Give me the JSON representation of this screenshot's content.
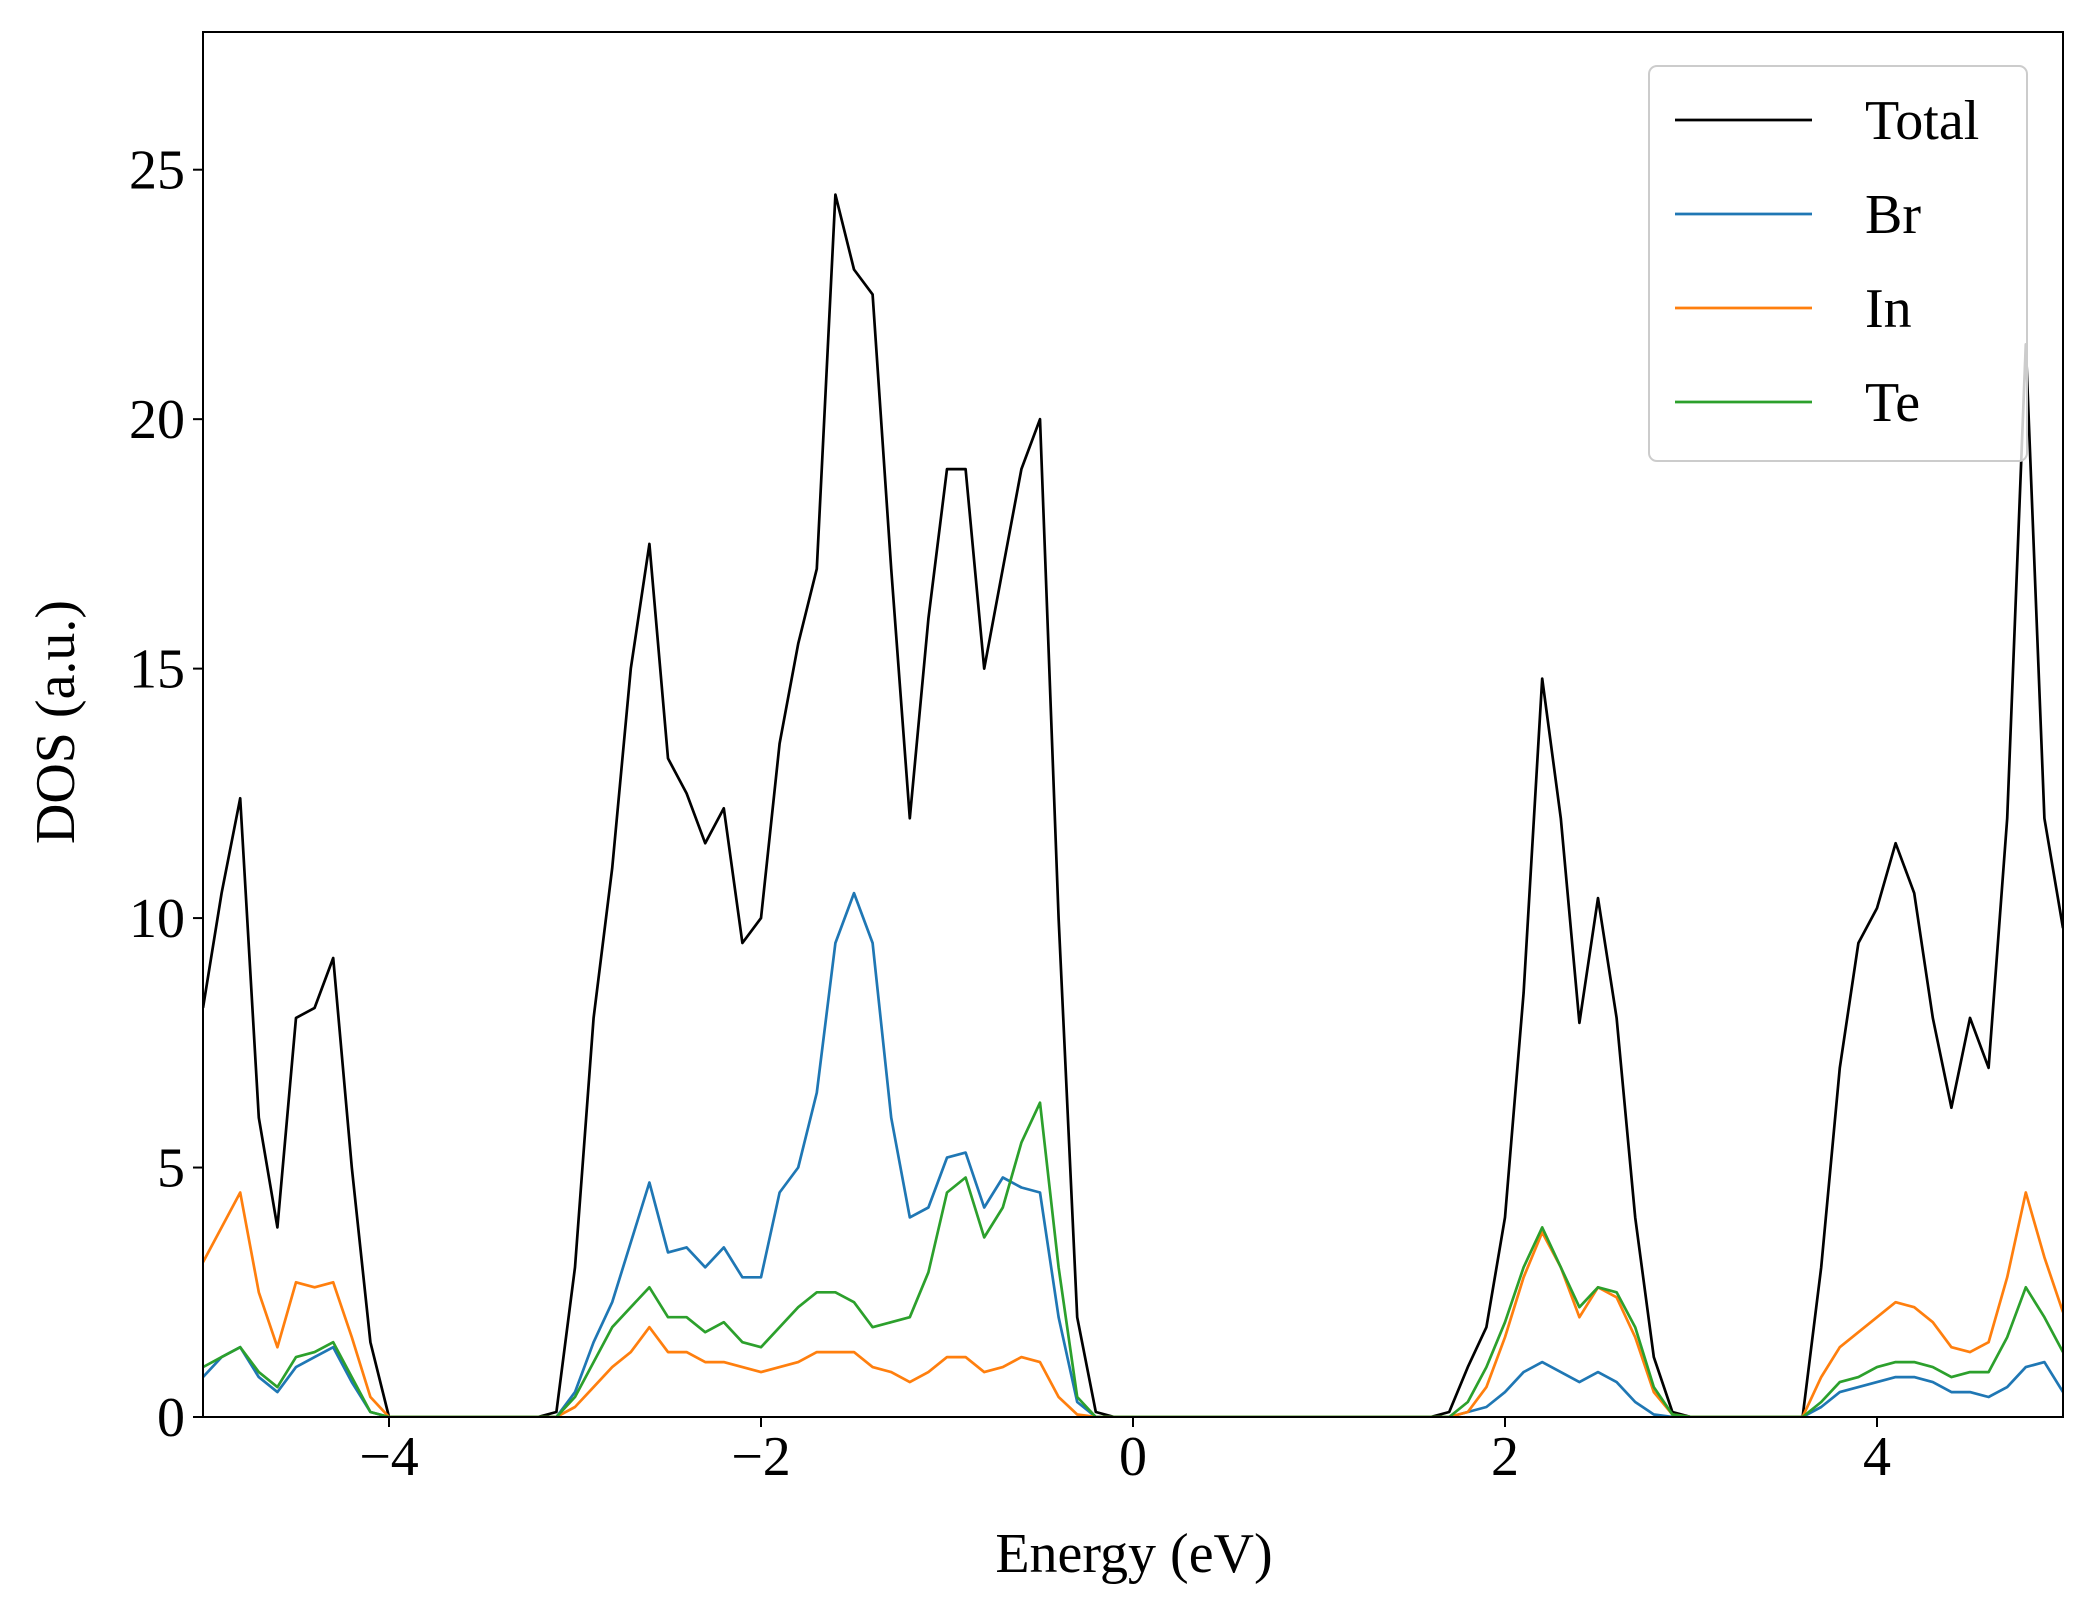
{
  "chart_data": {
    "type": "line",
    "xlabel": "Energy (eV)",
    "ylabel": "DOS (a.u.)",
    "x": [
      -5.0,
      -4.9,
      -4.8,
      -4.7,
      -4.6,
      -4.5,
      -4.4,
      -4.3,
      -4.2,
      -4.1,
      -4.0,
      -3.9,
      -3.8,
      -3.7,
      -3.6,
      -3.5,
      -3.4,
      -3.3,
      -3.2,
      -3.1,
      -3.0,
      -2.9,
      -2.8,
      -2.7,
      -2.6,
      -2.5,
      -2.4,
      -2.3,
      -2.2,
      -2.1,
      -2.0,
      -1.9,
      -1.8,
      -1.7,
      -1.6,
      -1.5,
      -1.4,
      -1.3,
      -1.2,
      -1.1,
      -1.0,
      -0.9,
      -0.8,
      -0.7,
      -0.6,
      -0.5,
      -0.4,
      -0.3,
      -0.2,
      -0.1,
      0.0,
      0.1,
      0.2,
      0.3,
      0.4,
      0.5,
      0.6,
      0.7,
      0.8,
      0.9,
      1.0,
      1.1,
      1.2,
      1.3,
      1.4,
      1.5,
      1.6,
      1.7,
      1.8,
      1.9,
      2.0,
      2.1,
      2.2,
      2.3,
      2.4,
      2.5,
      2.6,
      2.7,
      2.8,
      2.9,
      3.0,
      3.1,
      3.2,
      3.3,
      3.4,
      3.5,
      3.6,
      3.7,
      3.8,
      3.9,
      4.0,
      4.1,
      4.2,
      4.3,
      4.4,
      4.5,
      4.6,
      4.7,
      4.8,
      4.9,
      5.0
    ],
    "series": [
      {
        "name": "Total",
        "color": "#000000",
        "values": [
          8.2,
          10.5,
          12.4,
          6,
          3.8,
          8.0,
          8.2,
          9.2,
          5,
          1.5,
          0,
          0,
          0,
          0,
          0,
          0,
          0,
          0,
          0,
          0.1,
          3,
          8,
          11,
          15,
          17.5,
          13.2,
          12.5,
          11.5,
          12.2,
          9.5,
          10,
          13.5,
          15.5,
          17,
          24.5,
          23,
          22.5,
          17,
          12,
          16,
          19,
          19,
          15,
          17,
          19,
          20,
          10,
          2,
          0.1,
          0,
          0,
          0,
          0,
          0,
          0,
          0,
          0,
          0,
          0,
          0,
          0,
          0,
          0,
          0,
          0,
          0,
          0,
          0.1,
          1.0,
          1.8,
          4,
          8.5,
          14.8,
          12,
          7.9,
          10.4,
          8,
          4,
          1.2,
          0.1,
          0,
          0,
          0,
          0,
          0,
          0,
          0,
          3,
          7,
          9.5,
          10.2,
          11.5,
          10.5,
          8,
          6.2,
          8,
          7,
          12,
          21.5,
          12,
          9.8
        ]
      },
      {
        "name": "Br",
        "color": "#1f77b4",
        "values": [
          0.8,
          1.2,
          1.4,
          0.8,
          0.5,
          1.0,
          1.2,
          1.4,
          0.7,
          0.1,
          0,
          0,
          0,
          0,
          0,
          0,
          0,
          0,
          0,
          0,
          0.5,
          1.5,
          2.3,
          3.5,
          4.7,
          3.3,
          3.4,
          3.0,
          3.4,
          2.8,
          2.8,
          4.5,
          5.0,
          6.5,
          9.5,
          10.5,
          9.5,
          6,
          4,
          4.2,
          5.2,
          5.3,
          4.2,
          4.8,
          4.6,
          4.5,
          2,
          0.3,
          0,
          0,
          0,
          0,
          0,
          0,
          0,
          0,
          0,
          0,
          0,
          0,
          0,
          0,
          0,
          0,
          0,
          0,
          0,
          0,
          0.1,
          0.2,
          0.5,
          0.9,
          1.1,
          0.9,
          0.7,
          0.9,
          0.7,
          0.3,
          0.05,
          0,
          0,
          0,
          0,
          0,
          0,
          0,
          0,
          0.2,
          0.5,
          0.6,
          0.7,
          0.8,
          0.8,
          0.7,
          0.5,
          0.5,
          0.4,
          0.6,
          1.0,
          1.1,
          0.5
        ]
      },
      {
        "name": "In",
        "color": "#ff7f0e",
        "values": [
          3.1,
          3.8,
          4.5,
          2.5,
          1.4,
          2.7,
          2.6,
          2.7,
          1.6,
          0.4,
          0,
          0,
          0,
          0,
          0,
          0,
          0,
          0,
          0,
          0,
          0.2,
          0.6,
          1.0,
          1.3,
          1.8,
          1.3,
          1.3,
          1.1,
          1.1,
          1.0,
          0.9,
          1.0,
          1.1,
          1.3,
          1.3,
          1.3,
          1.0,
          0.9,
          0.7,
          0.9,
          1.2,
          1.2,
          0.9,
          1.0,
          1.2,
          1.1,
          0.4,
          0.05,
          0,
          0,
          0,
          0,
          0,
          0,
          0,
          0,
          0,
          0,
          0,
          0,
          0,
          0,
          0,
          0,
          0,
          0,
          0,
          0,
          0.1,
          0.6,
          1.6,
          2.8,
          3.7,
          3.0,
          2.0,
          2.6,
          2.4,
          1.6,
          0.5,
          0.05,
          0,
          0,
          0,
          0,
          0,
          0,
          0,
          0.8,
          1.4,
          1.7,
          2.0,
          2.3,
          2.2,
          1.9,
          1.4,
          1.3,
          1.5,
          2.8,
          4.5,
          3.2,
          2.1
        ]
      },
      {
        "name": "Te",
        "color": "#2ca02c",
        "values": [
          1.0,
          1.2,
          1.4,
          0.9,
          0.6,
          1.2,
          1.3,
          1.5,
          0.8,
          0.1,
          0,
          0,
          0,
          0,
          0,
          0,
          0,
          0,
          0,
          0,
          0.4,
          1.1,
          1.8,
          2.2,
          2.6,
          2.0,
          2.0,
          1.7,
          1.9,
          1.5,
          1.4,
          1.8,
          2.2,
          2.5,
          2.5,
          2.3,
          1.8,
          1.9,
          2.0,
          2.9,
          4.5,
          4.8,
          3.6,
          4.2,
          5.5,
          6.3,
          3.0,
          0.4,
          0,
          0,
          0,
          0,
          0,
          0,
          0,
          0,
          0,
          0,
          0,
          0,
          0,
          0,
          0,
          0,
          0,
          0,
          0,
          0,
          0.3,
          1.0,
          1.9,
          3.0,
          3.8,
          3.0,
          2.2,
          2.6,
          2.5,
          1.8,
          0.6,
          0.05,
          0,
          0,
          0,
          0,
          0,
          0,
          0,
          0.3,
          0.7,
          0.8,
          1.0,
          1.1,
          1.1,
          1.0,
          0.8,
          0.9,
          0.9,
          1.6,
          2.6,
          2.0,
          1.3
        ]
      }
    ],
    "xlim": [
      -5,
      5
    ],
    "xticks": [
      {
        "value": -4,
        "label": "−4"
      },
      {
        "value": -2,
        "label": "−2"
      },
      0,
      2,
      4
    ],
    "ylim": [
      0,
      27.76
    ],
    "yticks": [
      0,
      5,
      10,
      15,
      20,
      25
    ],
    "grid": false,
    "legend": "upper right"
  }
}
